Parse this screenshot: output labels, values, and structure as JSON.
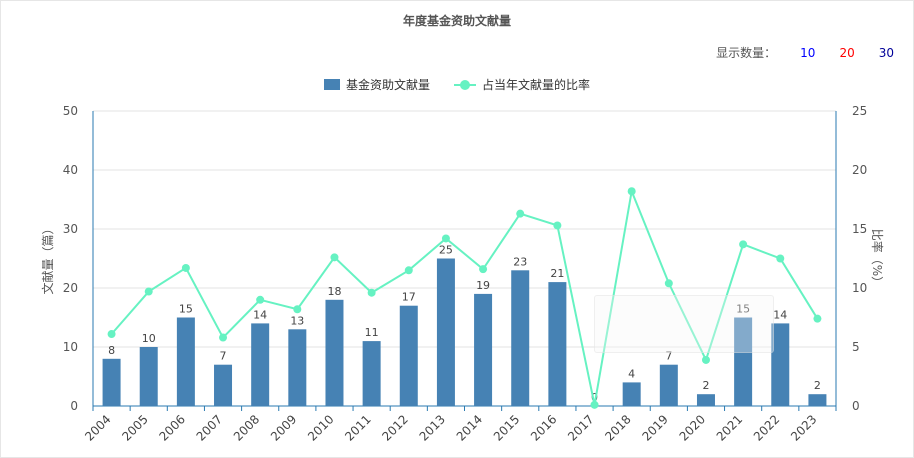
{
  "title": "年度基金资助文献量",
  "count_selector": {
    "label": "显示数量：",
    "options": [
      "10",
      "20",
      "30"
    ]
  },
  "colors": {
    "bar": "#4682b4",
    "line": "#66f2c2",
    "axis": "#2a7ab0",
    "grid": "#e3e3e3"
  },
  "chart_data": {
    "type": "bar",
    "categories": [
      "2004",
      "2005",
      "2006",
      "2007",
      "2008",
      "2009",
      "2010",
      "2011",
      "2012",
      "2013",
      "2014",
      "2015",
      "2016",
      "2017",
      "2018",
      "2019",
      "2020",
      "2021",
      "2022",
      "2023"
    ],
    "series": [
      {
        "name": "基金资助文献量",
        "type": "bar",
        "axis": "left",
        "values": [
          8,
          10,
          15,
          7,
          14,
          13,
          18,
          11,
          17,
          25,
          19,
          23,
          21,
          0,
          4,
          7,
          2,
          15,
          14,
          2
        ]
      },
      {
        "name": "占当年文献量的比率",
        "type": "line",
        "axis": "right",
        "values": [
          6.1,
          9.7,
          11.7,
          5.8,
          9.0,
          8.2,
          12.6,
          9.6,
          11.5,
          14.2,
          11.6,
          16.3,
          15.3,
          0.1,
          18.2,
          10.4,
          3.9,
          13.7,
          12.5,
          7.4
        ]
      }
    ],
    "ylabel_left": "文献量（篇）",
    "ylabel_right": "比率（%）",
    "ylim_left": [
      0,
      50
    ],
    "ylim_right": [
      0,
      25
    ],
    "yticks_left": [
      0,
      10,
      20,
      30,
      40,
      50
    ],
    "yticks_right": [
      0,
      5,
      10,
      15,
      20,
      25
    ],
    "grid": true,
    "legend": "top-center"
  }
}
